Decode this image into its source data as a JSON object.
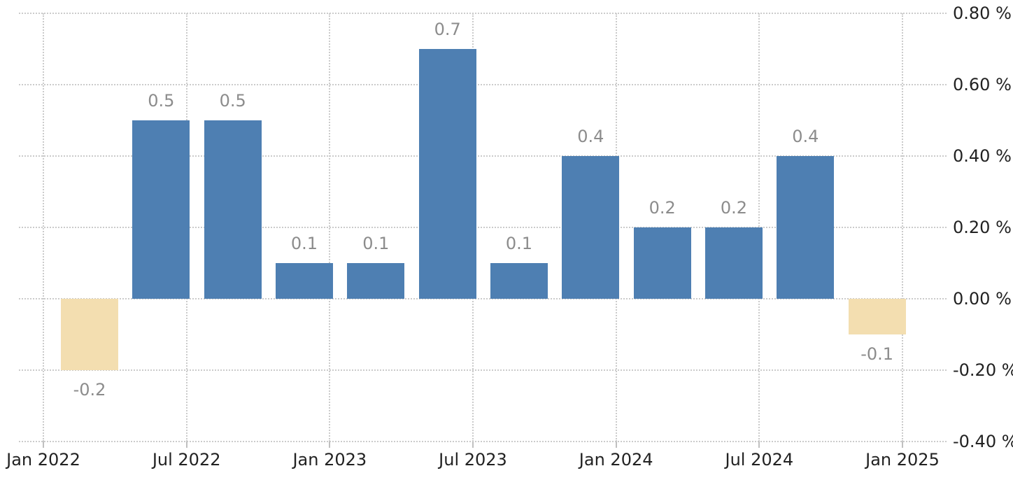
{
  "chart_data": {
    "type": "bar",
    "title": "",
    "xlabel": "",
    "ylabel": "",
    "categories": [
      "2022-Q1",
      "2022-Q2",
      "2022-Q3",
      "2022-Q4",
      "2023-Q1",
      "2023-Q2",
      "2023-Q3",
      "2023-Q4",
      "2024-Q1",
      "2024-Q2",
      "2024-Q3",
      "2024-Q4"
    ],
    "values": [
      -0.2,
      0.5,
      0.5,
      0.1,
      0.1,
      0.7,
      0.1,
      0.4,
      0.2,
      0.2,
      0.4,
      -0.1
    ],
    "bar_labels": [
      "-0.2",
      "0.5",
      "0.5",
      "0.1",
      "0.1",
      "0.7",
      "0.1",
      "0.4",
      "0.2",
      "0.2",
      "0.4",
      "-0.1"
    ],
    "ylim": [
      -0.4,
      0.8
    ],
    "y_tick_step": 0.2,
    "y_tick_labels": [
      "0.80 %",
      "0.60 %",
      "0.40 %",
      "0.20 %",
      "0.00 %",
      "-0.20 %",
      "-0.40 %"
    ],
    "x_tick_labels": [
      "Jan 2022",
      "Jul 2022",
      "Jan 2023",
      "Jul 2023",
      "Jan 2024",
      "Jul 2024",
      "Jan 2025"
    ],
    "grid": "dotted",
    "legend_position": "none",
    "y_axis_side": "right"
  },
  "style": {
    "background_color": "#ffffff",
    "grid_color": "#cbcbcb",
    "axis_tick_color": "#c0c0c0",
    "axis_label_color": "#222222",
    "bar_label_color": "#8c8c8c",
    "positive_bar_color": "#4e7fb2",
    "negative_bar_color": "#f3deb0"
  }
}
